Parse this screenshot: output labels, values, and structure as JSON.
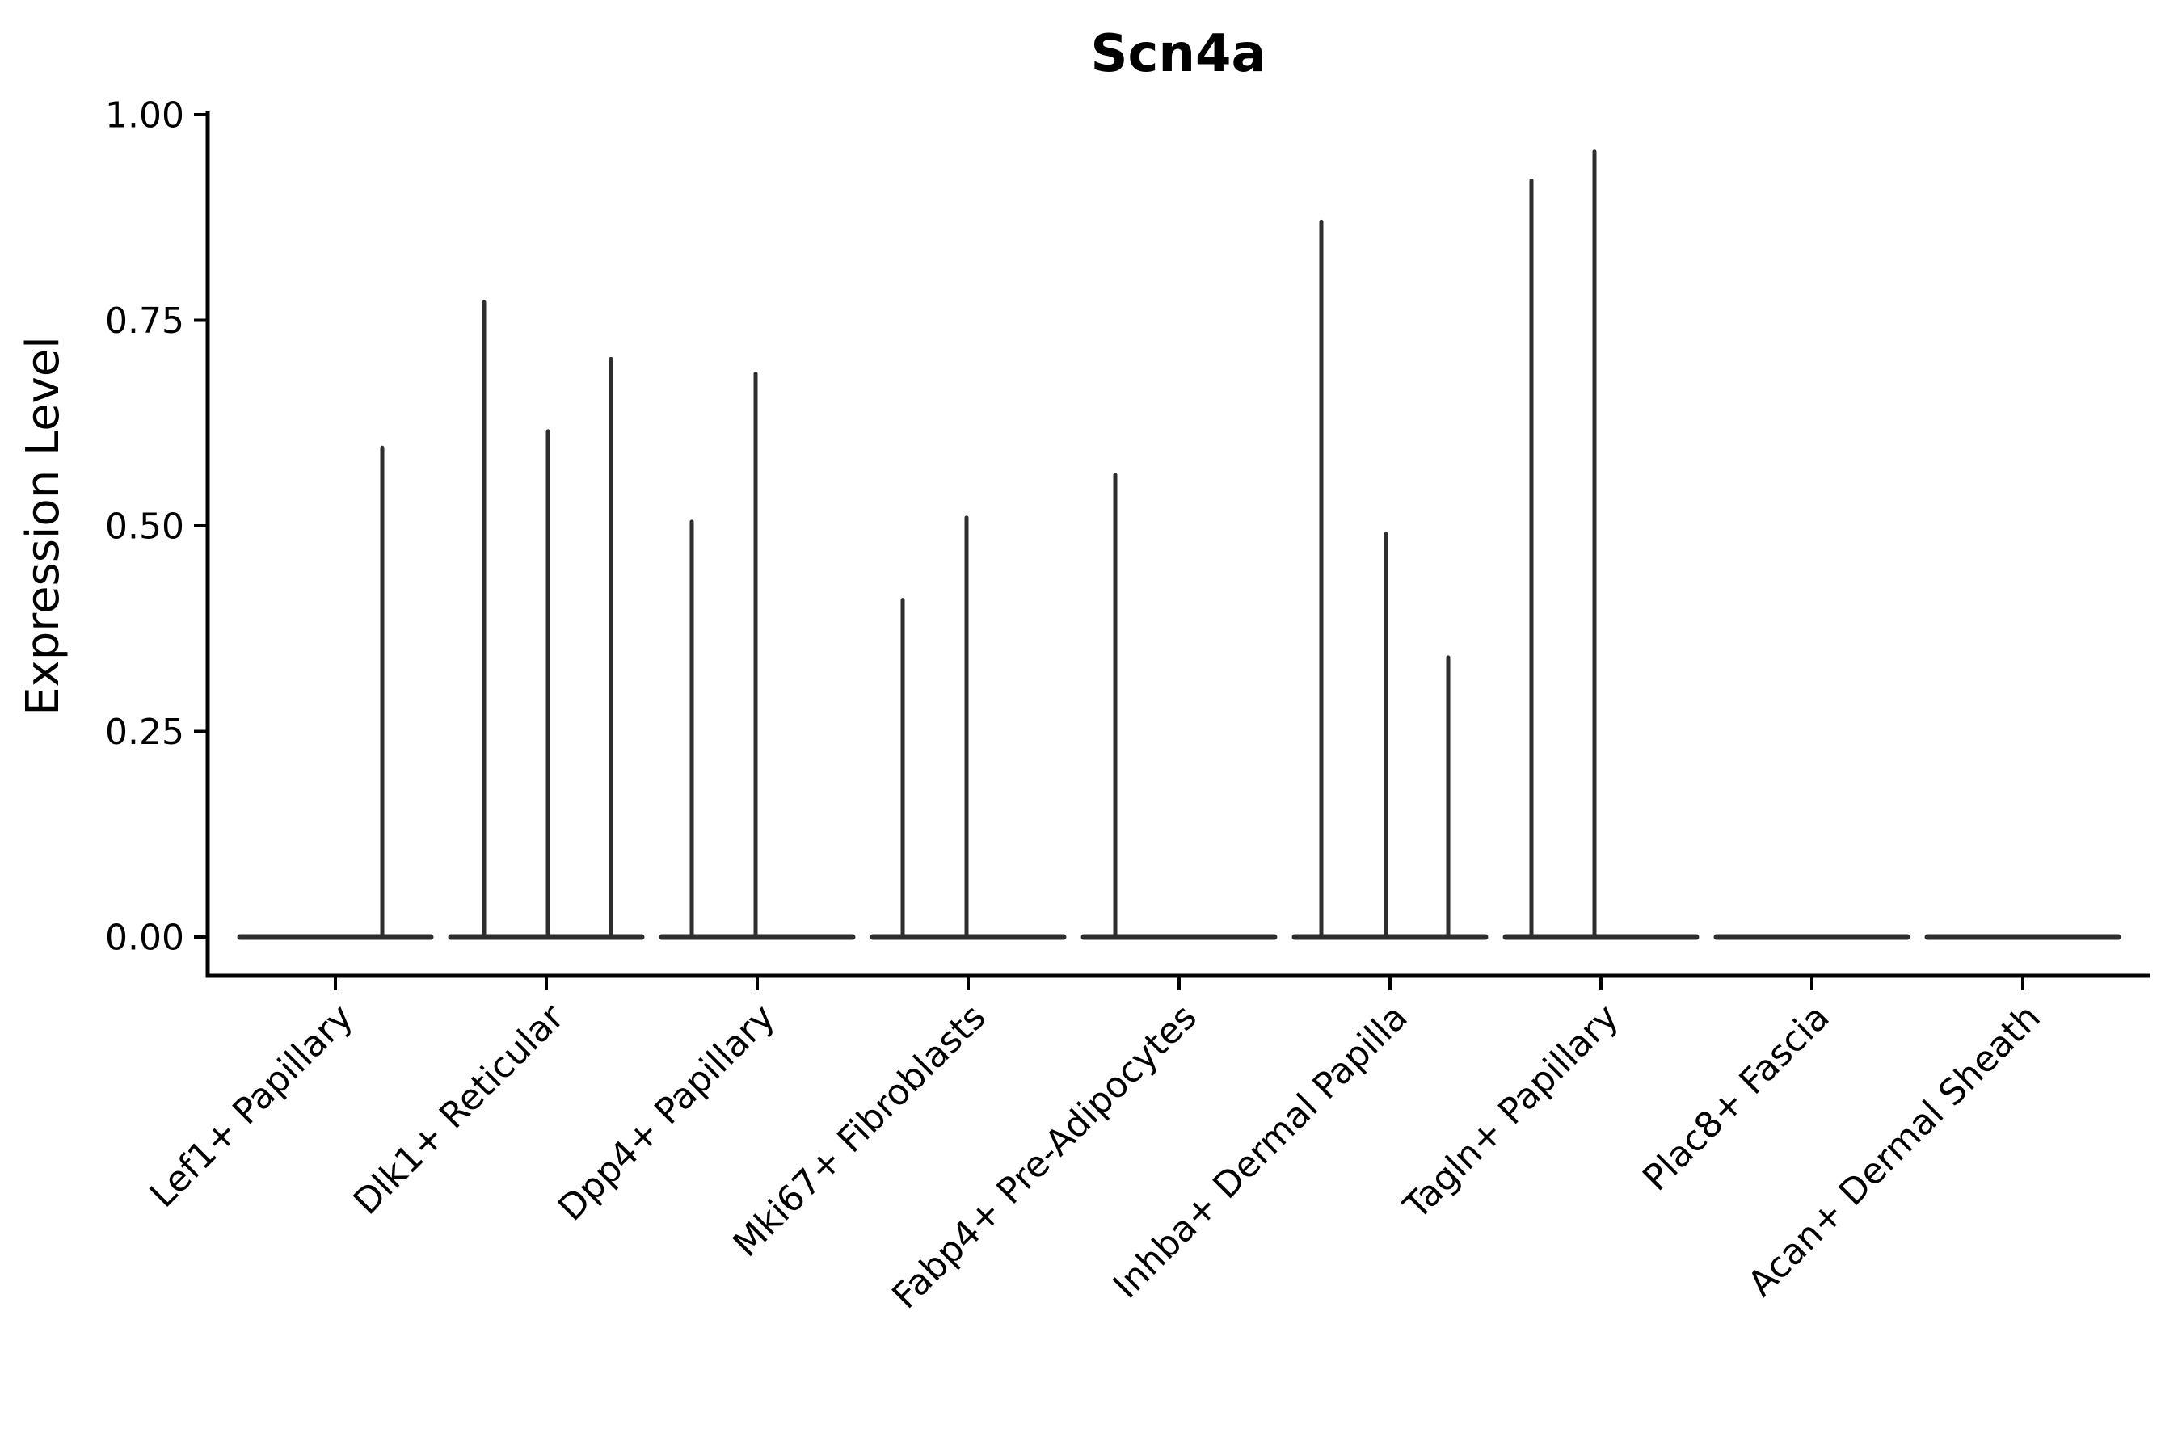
{
  "chart": {
    "title": "Scn4a",
    "ylabel": "Expression Level"
  },
  "chart_data": {
    "type": "violin",
    "title": "Scn4a",
    "xlabel": "",
    "ylabel": "Expression Level",
    "ylim": [
      0,
      1
    ],
    "grid": false,
    "legend": "none",
    "yticks": [
      {
        "label": "0.00",
        "value": 0.0
      },
      {
        "label": "0.25",
        "value": 0.25
      },
      {
        "label": "0.50",
        "value": 0.5
      },
      {
        "label": "0.75",
        "value": 0.75
      },
      {
        "label": "1.00",
        "value": 1.0
      }
    ],
    "categories": [
      "Lef1+ Papillary",
      "Dlk1+ Reticular",
      "Dpp4+ Papillary",
      "Mki67+ Fibroblasts",
      "Fabp4+ Pre-Adipocytes",
      "Inhba+ Dermal Papilla",
      "Tagln+ Papillary",
      "Plac8+ Fascia",
      "Acan+ Dermal Sheath"
    ],
    "series": [
      {
        "name": "Lef1+ Papillary",
        "baseline_value": 0.0,
        "spikes": [
          {
            "dx": 58,
            "value": 0.595
          }
        ]
      },
      {
        "name": "Dlk1+ Reticular",
        "baseline_value": 0.0,
        "spikes": [
          {
            "dx": -77,
            "value": 0.772
          },
          {
            "dx": 2,
            "value": 0.615
          },
          {
            "dx": 80,
            "value": 0.703
          }
        ]
      },
      {
        "name": "Dpp4+ Papillary",
        "baseline_value": 0.0,
        "spikes": [
          {
            "dx": -81,
            "value": 0.505
          },
          {
            "dx": -2,
            "value": 0.685
          }
        ]
      },
      {
        "name": "Mki67+ Fibroblasts",
        "baseline_value": 0.0,
        "spikes": [
          {
            "dx": -81,
            "value": 0.41
          },
          {
            "dx": -2,
            "value": 0.51
          }
        ]
      },
      {
        "name": "Fabp4+ Pre-Adipocytes",
        "baseline_value": 0.0,
        "spikes": [
          {
            "dx": -79,
            "value": 0.562
          }
        ]
      },
      {
        "name": "Inhba+ Dermal Papilla",
        "baseline_value": 0.0,
        "spikes": [
          {
            "dx": -85,
            "value": 0.87
          },
          {
            "dx": -5,
            "value": 0.49
          },
          {
            "dx": 72,
            "value": 0.34
          }
        ]
      },
      {
        "name": "Tagln+ Papillary",
        "baseline_value": 0.0,
        "spikes": [
          {
            "dx": -86,
            "value": 0.92
          },
          {
            "dx": -8,
            "value": 0.955
          }
        ]
      },
      {
        "name": "Plac8+ Fascia",
        "baseline_value": 0.0,
        "spikes": []
      },
      {
        "name": "Acan+ Dermal Sheath",
        "baseline_value": 0.0,
        "spikes": []
      }
    ],
    "colors": {
      "violin_stroke": "#2e2e2e",
      "axis": "#000000",
      "text": "#000000",
      "background": "#ffffff"
    }
  }
}
